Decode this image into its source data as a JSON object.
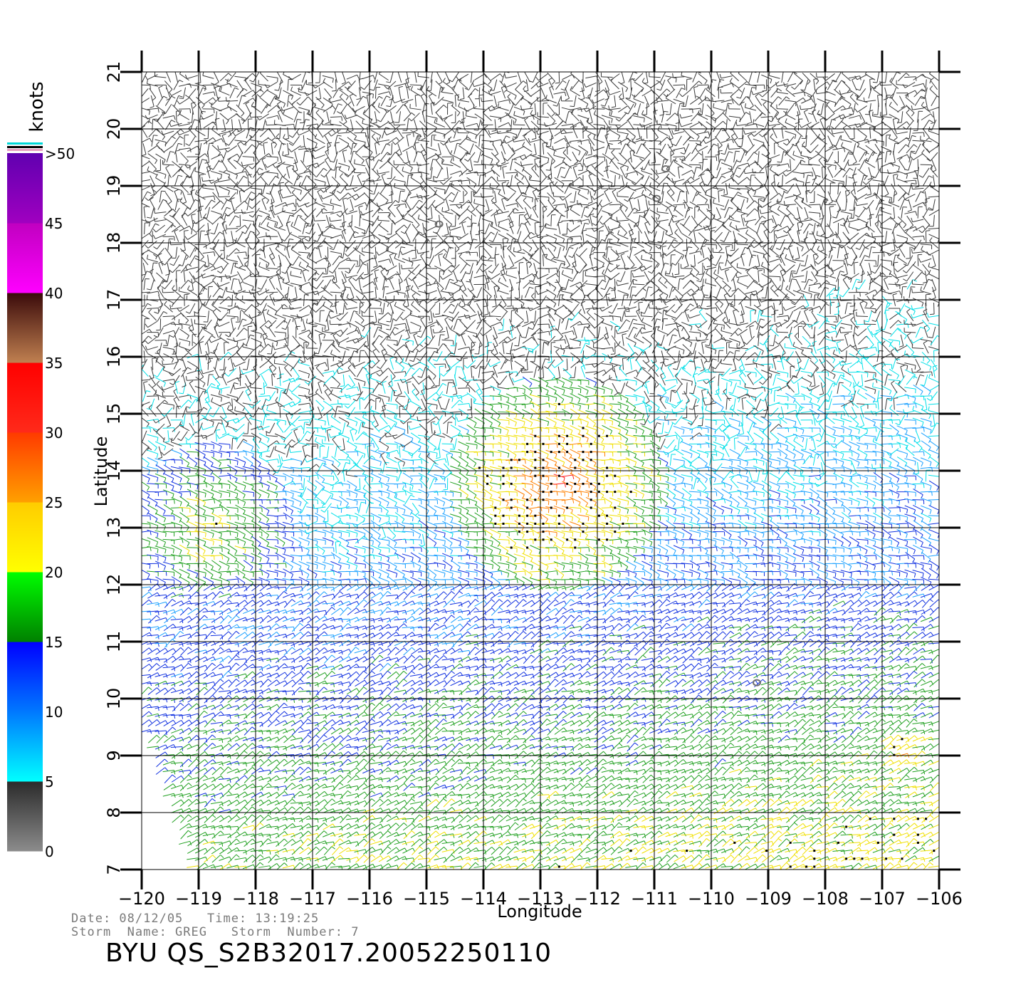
{
  "colorbar": {
    "units": "knots",
    "labels": [
      "0",
      "5",
      "10",
      "15",
      "20",
      "25",
      "30",
      "35",
      "40",
      "45",
      ">50"
    ],
    "bands": [
      {
        "from": 0,
        "to": 5,
        "colors": [
          "#8c8c8c",
          "#2a2a2a"
        ]
      },
      {
        "from": 5,
        "to": 10,
        "colors": [
          "#00ffff",
          "#0078ff"
        ]
      },
      {
        "from": 10,
        "to": 15,
        "colors": [
          "#0078ff",
          "#0000ff"
        ]
      },
      {
        "from": 15,
        "to": 20,
        "colors": [
          "#008000",
          "#00ff00"
        ]
      },
      {
        "from": 20,
        "to": 25,
        "colors": [
          "#ffff00",
          "#ffcc00"
        ]
      },
      {
        "from": 25,
        "to": 30,
        "colors": [
          "#ffa000",
          "#ff3a00"
        ]
      },
      {
        "from": 30,
        "to": 35,
        "colors": [
          "#ff2a1a",
          "#ff0000"
        ]
      },
      {
        "from": 35,
        "to": 40,
        "colors": [
          "#c08050",
          "#3a0a0a"
        ]
      },
      {
        "from": 40,
        "to": 45,
        "colors": [
          "#ff00ff",
          "#c000c0"
        ]
      },
      {
        "from": 45,
        "to": 50,
        "colors": [
          "#a000c0",
          "#6000b0"
        ]
      }
    ]
  },
  "map": {
    "xlabel": "Longitude",
    "ylabel": "Latitude",
    "lon_range": [
      -120,
      -106
    ],
    "lat_range": [
      7,
      21
    ],
    "lon_ticks": [
      "−120",
      "−119",
      "−118",
      "−117",
      "−116",
      "−115",
      "−114",
      "−113",
      "−112",
      "−111",
      "−110",
      "−109",
      "−108",
      "−107",
      "−106"
    ],
    "lat_ticks": [
      "7",
      "8",
      "9",
      "10",
      "11",
      "12",
      "13",
      "14",
      "15",
      "16",
      "17",
      "18",
      "19",
      "20",
      "21"
    ],
    "wind_regions": [
      {
        "name": "storm-core",
        "lon": -112.7,
        "lat": 13.8,
        "radius_deg": 1.9,
        "speed_kn": 30
      },
      {
        "name": "west-band",
        "lon": -118.8,
        "lat": 13.0,
        "radius_deg": 1.5,
        "speed_kn": 22
      },
      {
        "name": "southeast-band",
        "lon": -106.6,
        "lat": 9.0,
        "radius_deg": 1.0,
        "speed_kn": 24
      }
    ],
    "islands": [
      {
        "lon": -114.78,
        "lat": 18.33
      },
      {
        "lon": -110.96,
        "lat": 18.78
      },
      {
        "lon": -110.8,
        "lat": 19.3
      },
      {
        "lon": -109.2,
        "lat": 10.28
      }
    ]
  },
  "footer": {
    "line1": "Date: 08/12/05   Time: 13:19:25",
    "line2": "Storm  Name: GREG   Storm  Number: 7",
    "title": "BYU  QS_S2B32017.20052250110"
  }
}
